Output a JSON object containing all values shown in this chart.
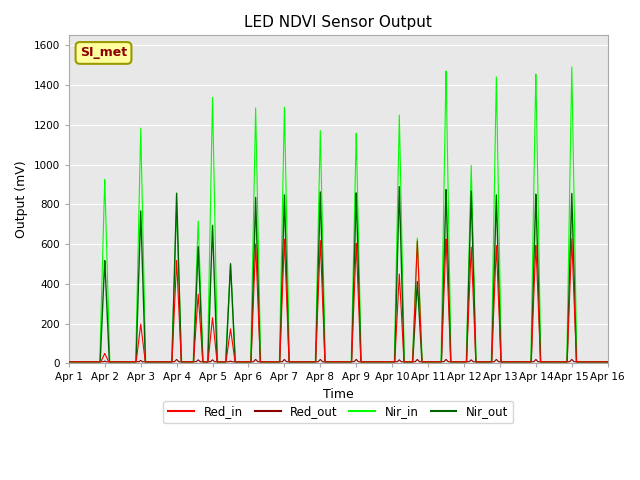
{
  "title": "LED NDVI Sensor Output",
  "xlabel": "Time",
  "ylabel": "Output (mV)",
  "ylim": [
    0,
    1650
  ],
  "yticks": [
    0,
    200,
    400,
    600,
    800,
    1000,
    1200,
    1400,
    1600
  ],
  "xlim": [
    0,
    15
  ],
  "xtick_labels": [
    "Apr 1",
    "Apr 2",
    "Apr 3",
    "Apr 4",
    "Apr 5",
    "Apr 6",
    "Apr 7",
    "Apr 8",
    "Apr 9",
    "Apr 10",
    "Apr 11",
    "Apr 12",
    "Apr 13",
    "Apr 14",
    "Apr 15",
    "Apr 16"
  ],
  "fig_bg": "#ffffff",
  "plot_bg": "#e8e8e8",
  "annotation_text": "SI_met",
  "annotation_bg": "#ffffa0",
  "annotation_border": "#999900",
  "annotation_text_color": "#8b0000",
  "colors": {
    "red_in": "#ff0000",
    "red_out": "#8b0000",
    "nir_in": "#00ff00",
    "nir_out": "#006400"
  },
  "peaks": [
    {
      "day": 1.0,
      "red_in": 50,
      "red_out": 12,
      "nir_in": 930,
      "nir_out": 520
    },
    {
      "day": 2.0,
      "red_in": 200,
      "red_out": 15,
      "nir_in": 1195,
      "nir_out": 775
    },
    {
      "day": 3.0,
      "red_in": 520,
      "red_out": 20,
      "nir_in": 790,
      "nir_out": 860
    },
    {
      "day": 3.6,
      "red_in": 350,
      "red_out": 18,
      "nir_in": 720,
      "nir_out": 590
    },
    {
      "day": 4.0,
      "red_in": 230,
      "red_out": 18,
      "nir_in": 1340,
      "nir_out": 695
    },
    {
      "day": 4.5,
      "red_in": 175,
      "red_out": 12,
      "nir_in": 500,
      "nir_out": 505
    },
    {
      "day": 5.2,
      "red_in": 600,
      "red_out": 20,
      "nir_in": 1285,
      "nir_out": 835
    },
    {
      "day": 6.0,
      "red_in": 630,
      "red_out": 20,
      "nir_in": 1300,
      "nir_out": 855
    },
    {
      "day": 7.0,
      "red_in": 620,
      "red_out": 20,
      "nir_in": 1175,
      "nir_out": 865
    },
    {
      "day": 8.0,
      "red_in": 605,
      "red_out": 20,
      "nir_in": 1160,
      "nir_out": 860
    },
    {
      "day": 9.2,
      "red_in": 450,
      "red_out": 18,
      "nir_in": 1250,
      "nir_out": 890
    },
    {
      "day": 9.7,
      "red_in": 620,
      "red_out": 20,
      "nir_in": 635,
      "nir_out": 415
    },
    {
      "day": 10.5,
      "red_in": 630,
      "red_out": 20,
      "nir_in": 1480,
      "nir_out": 880
    },
    {
      "day": 11.2,
      "red_in": 590,
      "red_out": 18,
      "nir_in": 1005,
      "nir_out": 875
    },
    {
      "day": 11.9,
      "red_in": 595,
      "red_out": 20,
      "nir_in": 1445,
      "nir_out": 850
    },
    {
      "day": 13.0,
      "red_in": 600,
      "red_out": 20,
      "nir_in": 1470,
      "nir_out": 860
    },
    {
      "day": 14.0,
      "red_in": 630,
      "red_out": 20,
      "nir_in": 1500,
      "nir_out": 860
    }
  ]
}
